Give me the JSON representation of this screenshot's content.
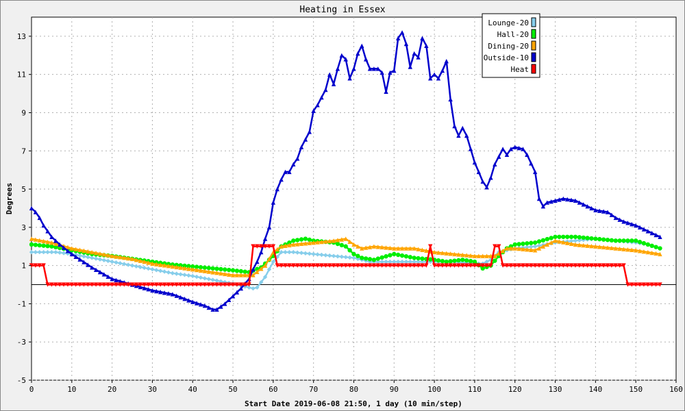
{
  "chart_data": {
    "type": "line",
    "title": "Heating in Essex",
    "xlabel": "Start Date 2019-06-08 21:50, 1 day (10 min/step)",
    "ylabel": "Degrees",
    "xlim": [
      0,
      160
    ],
    "ylim": [
      -5,
      14
    ],
    "xticks": [
      0,
      10,
      20,
      30,
      40,
      50,
      60,
      70,
      80,
      90,
      100,
      110,
      120,
      130,
      140,
      150,
      160
    ],
    "yticks": [
      -5,
      -3,
      -1,
      1,
      3,
      5,
      7,
      9,
      11,
      13
    ],
    "grid": true,
    "legend_position": "top-right",
    "series": [
      {
        "name": "Lounge-20",
        "color": "#87ceeb",
        "marker": "diamond",
        "points": [
          [
            0,
            1.7
          ],
          [
            3,
            1.7
          ],
          [
            6,
            1.7
          ],
          [
            10,
            1.6
          ],
          [
            15,
            1.4
          ],
          [
            20,
            1.2
          ],
          [
            25,
            1.0
          ],
          [
            30,
            0.8
          ],
          [
            35,
            0.6
          ],
          [
            40,
            0.45
          ],
          [
            45,
            0.25
          ],
          [
            50,
            0.05
          ],
          [
            53,
            -0.1
          ],
          [
            55,
            -0.2
          ],
          [
            56,
            -0.15
          ],
          [
            58,
            0.4
          ],
          [
            60,
            1.2
          ],
          [
            62,
            1.7
          ],
          [
            65,
            1.7
          ],
          [
            70,
            1.6
          ],
          [
            75,
            1.5
          ],
          [
            80,
            1.4
          ],
          [
            82,
            1.3
          ],
          [
            84,
            1.2
          ],
          [
            86,
            1.2
          ],
          [
            90,
            1.2
          ],
          [
            95,
            1.2
          ],
          [
            100,
            1.2
          ],
          [
            105,
            1.2
          ],
          [
            110,
            1.1
          ],
          [
            112,
            1.1
          ],
          [
            114,
            1.3
          ],
          [
            116,
            1.7
          ],
          [
            118,
            1.8
          ],
          [
            120,
            1.9
          ],
          [
            125,
            2.0
          ],
          [
            130,
            2.2
          ],
          [
            135,
            2.3
          ],
          [
            140,
            2.4
          ],
          [
            145,
            2.3
          ],
          [
            150,
            2.2
          ],
          [
            153,
            2.1
          ],
          [
            156,
            1.9
          ]
        ]
      },
      {
        "name": "Hall-20",
        "color": "#00ee00",
        "marker": "circle",
        "points": [
          [
            0,
            2.1
          ],
          [
            5,
            2.0
          ],
          [
            10,
            1.8
          ],
          [
            15,
            1.6
          ],
          [
            20,
            1.5
          ],
          [
            25,
            1.35
          ],
          [
            30,
            1.2
          ],
          [
            35,
            1.05
          ],
          [
            40,
            0.95
          ],
          [
            45,
            0.85
          ],
          [
            50,
            0.75
          ],
          [
            54,
            0.65
          ],
          [
            57,
            0.9
          ],
          [
            60,
            1.5
          ],
          [
            62,
            2.0
          ],
          [
            65,
            2.3
          ],
          [
            68,
            2.4
          ],
          [
            70,
            2.3
          ],
          [
            75,
            2.2
          ],
          [
            78,
            2.0
          ],
          [
            80,
            1.6
          ],
          [
            82,
            1.4
          ],
          [
            85,
            1.3
          ],
          [
            90,
            1.6
          ],
          [
            95,
            1.4
          ],
          [
            100,
            1.3
          ],
          [
            103,
            1.2
          ],
          [
            107,
            1.3
          ],
          [
            110,
            1.2
          ],
          [
            112,
            0.85
          ],
          [
            114,
            1.0
          ],
          [
            116,
            1.5
          ],
          [
            118,
            1.9
          ],
          [
            120,
            2.1
          ],
          [
            125,
            2.2
          ],
          [
            130,
            2.5
          ],
          [
            135,
            2.5
          ],
          [
            140,
            2.4
          ],
          [
            145,
            2.3
          ],
          [
            150,
            2.3
          ],
          [
            153,
            2.1
          ],
          [
            156,
            1.9
          ]
        ]
      },
      {
        "name": "Dining-20",
        "color": "#ffa500",
        "marker": "triangle",
        "points": [
          [
            0,
            2.4
          ],
          [
            5,
            2.2
          ],
          [
            10,
            1.9
          ],
          [
            15,
            1.7
          ],
          [
            20,
            1.5
          ],
          [
            25,
            1.35
          ],
          [
            30,
            1.1
          ],
          [
            35,
            0.95
          ],
          [
            40,
            0.8
          ],
          [
            45,
            0.65
          ],
          [
            50,
            0.5
          ],
          [
            55,
            0.5
          ],
          [
            58,
            1.0
          ],
          [
            60,
            1.7
          ],
          [
            62,
            2.0
          ],
          [
            65,
            2.1
          ],
          [
            70,
            2.2
          ],
          [
            75,
            2.3
          ],
          [
            78,
            2.4
          ],
          [
            80,
            2.1
          ],
          [
            82,
            1.9
          ],
          [
            85,
            2.0
          ],
          [
            90,
            1.9
          ],
          [
            95,
            1.9
          ],
          [
            100,
            1.7
          ],
          [
            105,
            1.6
          ],
          [
            110,
            1.5
          ],
          [
            115,
            1.5
          ],
          [
            118,
            1.9
          ],
          [
            120,
            1.9
          ],
          [
            125,
            1.8
          ],
          [
            130,
            2.3
          ],
          [
            135,
            2.1
          ],
          [
            140,
            2.0
          ],
          [
            145,
            1.9
          ],
          [
            150,
            1.8
          ],
          [
            153,
            1.7
          ],
          [
            156,
            1.6
          ]
        ]
      },
      {
        "name": "Outside-10",
        "color": "#0000cc",
        "marker": "triangle",
        "points": [
          [
            0,
            4.0
          ],
          [
            1,
            3.8
          ],
          [
            2,
            3.5
          ],
          [
            3,
            3.1
          ],
          [
            5,
            2.5
          ],
          [
            7,
            2.1
          ],
          [
            10,
            1.6
          ],
          [
            15,
            0.9
          ],
          [
            20,
            0.3
          ],
          [
            25,
            0.0
          ],
          [
            30,
            -0.3
          ],
          [
            35,
            -0.5
          ],
          [
            40,
            -0.9
          ],
          [
            43,
            -1.1
          ],
          [
            45,
            -1.3
          ],
          [
            46,
            -1.3
          ],
          [
            48,
            -1.0
          ],
          [
            50,
            -0.6
          ],
          [
            52,
            -0.2
          ],
          [
            54,
            0.3
          ],
          [
            55,
            0.8
          ],
          [
            56,
            1.2
          ],
          [
            57,
            1.7
          ],
          [
            58,
            2.4
          ],
          [
            59,
            3.0
          ],
          [
            60,
            4.3
          ],
          [
            61,
            5.0
          ],
          [
            62,
            5.5
          ],
          [
            63,
            5.9
          ],
          [
            64,
            5.9
          ],
          [
            65,
            6.3
          ],
          [
            66,
            6.6
          ],
          [
            67,
            7.2
          ],
          [
            68,
            7.6
          ],
          [
            69,
            8.0
          ],
          [
            70,
            9.1
          ],
          [
            71,
            9.4
          ],
          [
            72,
            9.8
          ],
          [
            73,
            10.2
          ],
          [
            74,
            11.0
          ],
          [
            75,
            10.5
          ],
          [
            76,
            11.3
          ],
          [
            77,
            12.0
          ],
          [
            78,
            11.8
          ],
          [
            79,
            10.8
          ],
          [
            80,
            11.3
          ],
          [
            81,
            12.1
          ],
          [
            82,
            12.5
          ],
          [
            83,
            11.8
          ],
          [
            84,
            11.3
          ],
          [
            86,
            11.3
          ],
          [
            87,
            11.1
          ],
          [
            88,
            10.1
          ],
          [
            89,
            11.1
          ],
          [
            90,
            11.2
          ],
          [
            91,
            12.9
          ],
          [
            92,
            13.2
          ],
          [
            93,
            12.6
          ],
          [
            94,
            11.4
          ],
          [
            95,
            12.1
          ],
          [
            96,
            11.9
          ],
          [
            97,
            12.9
          ],
          [
            98,
            12.5
          ],
          [
            99,
            10.8
          ],
          [
            100,
            11.0
          ],
          [
            101,
            10.8
          ],
          [
            102,
            11.2
          ],
          [
            103,
            11.7
          ],
          [
            104,
            9.7
          ],
          [
            105,
            8.3
          ],
          [
            106,
            7.8
          ],
          [
            107,
            8.2
          ],
          [
            108,
            7.8
          ],
          [
            109,
            7.1
          ],
          [
            110,
            6.4
          ],
          [
            111,
            5.9
          ],
          [
            112,
            5.4
          ],
          [
            113,
            5.1
          ],
          [
            114,
            5.6
          ],
          [
            115,
            6.3
          ],
          [
            116,
            6.7
          ],
          [
            117,
            7.1
          ],
          [
            118,
            6.8
          ],
          [
            119,
            7.1
          ],
          [
            120,
            7.2
          ],
          [
            122,
            7.1
          ],
          [
            123,
            6.8
          ],
          [
            125,
            5.9
          ],
          [
            126,
            4.5
          ],
          [
            127,
            4.1
          ],
          [
            128,
            4.3
          ],
          [
            130,
            4.4
          ],
          [
            132,
            4.5
          ],
          [
            135,
            4.4
          ],
          [
            137,
            4.2
          ],
          [
            140,
            3.9
          ],
          [
            143,
            3.8
          ],
          [
            145,
            3.5
          ],
          [
            147,
            3.3
          ],
          [
            150,
            3.1
          ],
          [
            152,
            2.9
          ],
          [
            154,
            2.7
          ],
          [
            156,
            2.5
          ]
        ]
      },
      {
        "name": "Heat",
        "color": "#ff0000",
        "marker": "triangle-down",
        "points": [
          [
            0,
            1
          ],
          [
            3,
            1
          ],
          [
            4,
            0
          ],
          [
            54,
            0
          ],
          [
            55,
            2
          ],
          [
            60,
            2
          ],
          [
            61,
            1
          ],
          [
            98,
            1
          ],
          [
            99,
            2
          ],
          [
            100,
            1
          ],
          [
            114,
            1
          ],
          [
            115,
            2
          ],
          [
            116,
            2
          ],
          [
            117,
            1
          ],
          [
            147,
            1
          ],
          [
            148,
            0
          ],
          [
            156,
            0
          ]
        ]
      }
    ]
  }
}
